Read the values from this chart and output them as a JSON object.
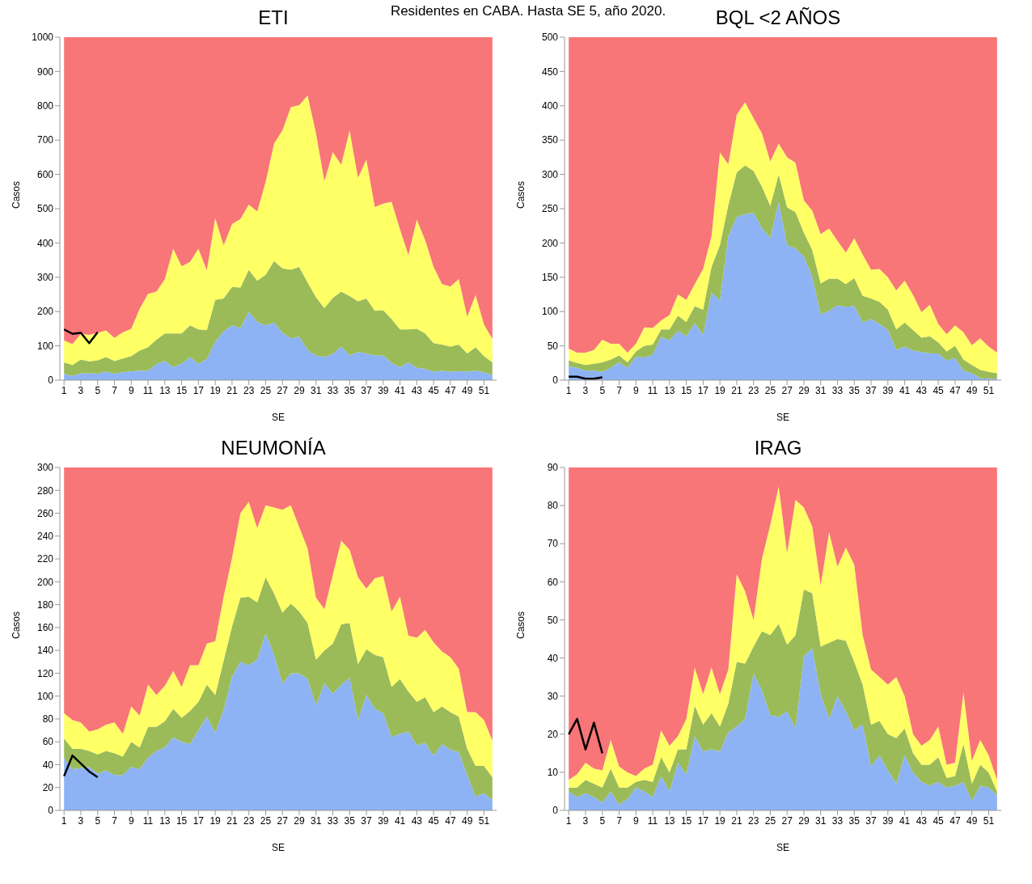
{
  "chart_data": [
    {
      "type": "area",
      "stacked": true,
      "title": "ETI",
      "xlabel": "SE",
      "ylabel": "Casos",
      "annotations": [
        "Residentes en CABA. Hasta SE 5, año 2020."
      ],
      "x": [
        1,
        2,
        3,
        4,
        5,
        6,
        7,
        8,
        9,
        10,
        11,
        12,
        13,
        14,
        15,
        16,
        17,
        18,
        19,
        20,
        21,
        22,
        23,
        24,
        25,
        26,
        27,
        28,
        29,
        30,
        31,
        32,
        33,
        34,
        35,
        36,
        37,
        38,
        39,
        40,
        41,
        42,
        43,
        44,
        45,
        46,
        47,
        48,
        49,
        50,
        51,
        52
      ],
      "xlim": [
        0.5,
        52.5
      ],
      "xticks": [
        1,
        3,
        5,
        7,
        9,
        11,
        13,
        15,
        17,
        19,
        21,
        23,
        25,
        27,
        29,
        31,
        33,
        35,
        37,
        39,
        41,
        43,
        45,
        47,
        49,
        51
      ],
      "ylim": [
        0,
        1000
      ],
      "yticks": [
        0,
        100,
        200,
        300,
        400,
        500,
        600,
        700,
        800,
        900,
        1000
      ],
      "series": [
        {
          "color": "#8db3f5",
          "values": [
            18,
            12,
            20,
            20,
            19,
            25,
            19,
            23,
            26,
            28,
            27,
            47,
            56,
            38,
            48,
            67,
            47,
            62,
            112,
            142,
            160,
            152,
            200,
            170,
            160,
            168,
            138,
            122,
            127,
            88,
            72,
            67,
            76,
            98,
            72,
            82,
            78,
            72,
            72,
            50,
            38,
            52,
            36,
            33,
            24,
            28,
            25,
            26,
            25,
            28,
            23,
            15
          ]
        },
        {
          "color": "#9bbb59",
          "values": [
            34,
            32,
            40,
            35,
            39,
            42,
            37,
            40,
            44,
            58,
            69,
            71,
            80,
            98,
            88,
            93,
            101,
            84,
            122,
            96,
            112,
            118,
            122,
            120,
            147,
            179,
            188,
            200,
            203,
            197,
            170,
            143,
            164,
            160,
            173,
            148,
            160,
            130,
            132,
            128,
            110,
            96,
            114,
            103,
            84,
            76,
            73,
            78,
            53,
            68,
            47,
            37
          ]
        },
        {
          "color": "#ffff66",
          "values": [
            64,
            61,
            75,
            77,
            80,
            78,
            67,
            77,
            80,
            122,
            156,
            140,
            159,
            247,
            196,
            185,
            235,
            174,
            238,
            155,
            183,
            200,
            190,
            202,
            271,
            343,
            402,
            474,
            472,
            545,
            478,
            370,
            425,
            370,
            483,
            360,
            405,
            303,
            311,
            342,
            292,
            217,
            318,
            272,
            222,
            176,
            175,
            191,
            107,
            152,
            92,
            68
          ]
        },
        {
          "color": "#f87578",
          "values": [
            884,
            895,
            865,
            868,
            862,
            855,
            877,
            860,
            850,
            792,
            748,
            742,
            705,
            617,
            668,
            655,
            617,
            680,
            528,
            607,
            545,
            530,
            488,
            508,
            422,
            310,
            272,
            204,
            198,
            170,
            280,
            420,
            335,
            372,
            272,
            410,
            357,
            495,
            485,
            480,
            560,
            635,
            532,
            592,
            670,
            720,
            727,
            705,
            815,
            752,
            838,
            880
          ]
        },
        {
          "type": "line",
          "color": "#000000",
          "x": [
            1,
            2,
            3,
            4,
            5
          ],
          "values": [
            148,
            135,
            138,
            108,
            140
          ]
        }
      ]
    },
    {
      "type": "area",
      "stacked": true,
      "title": "BQL <2 AÑOS",
      "xlabel": "SE",
      "ylabel": "Casos",
      "x": [
        1,
        2,
        3,
        4,
        5,
        6,
        7,
        8,
        9,
        10,
        11,
        12,
        13,
        14,
        15,
        16,
        17,
        18,
        19,
        20,
        21,
        22,
        23,
        24,
        25,
        26,
        27,
        28,
        29,
        30,
        31,
        32,
        33,
        34,
        35,
        36,
        37,
        38,
        39,
        40,
        41,
        42,
        43,
        44,
        45,
        46,
        47,
        48,
        49,
        50,
        51,
        52
      ],
      "xlim": [
        0.5,
        52.5
      ],
      "xticks": [
        1,
        3,
        5,
        7,
        9,
        11,
        13,
        15,
        17,
        19,
        21,
        23,
        25,
        27,
        29,
        31,
        33,
        35,
        37,
        39,
        41,
        43,
        45,
        47,
        49,
        51
      ],
      "ylim": [
        0,
        500
      ],
      "yticks": [
        0,
        50,
        100,
        150,
        200,
        250,
        300,
        350,
        400,
        450,
        500
      ],
      "series": [
        {
          "color": "#8db3f5",
          "values": [
            20,
            18,
            14,
            14,
            12,
            18,
            26,
            18,
            34,
            33,
            37,
            63,
            58,
            72,
            64,
            83,
            66,
            128,
            116,
            210,
            238,
            242,
            244,
            222,
            207,
            260,
            197,
            192,
            180,
            150,
            96,
            101,
            109,
            107,
            108,
            84,
            89,
            82,
            73,
            44,
            49,
            43,
            41,
            39,
            39,
            29,
            32,
            14,
            10,
            3,
            2,
            2
          ]
        },
        {
          "color": "#9bbb59",
          "values": [
            9,
            7,
            8,
            10,
            14,
            12,
            10,
            8,
            8,
            17,
            15,
            11,
            16,
            22,
            21,
            25,
            37,
            37,
            81,
            45,
            65,
            71,
            61,
            60,
            47,
            40,
            55,
            53,
            35,
            40,
            45,
            47,
            39,
            33,
            41,
            39,
            30,
            32,
            30,
            30,
            35,
            30,
            21,
            25,
            16,
            13,
            18,
            16,
            12,
            12,
            10,
            8
          ]
        },
        {
          "color": "#ffff66",
          "values": [
            17,
            15,
            18,
            20,
            33,
            23,
            17,
            14,
            11,
            27,
            24,
            13,
            21,
            31,
            32,
            32,
            59,
            45,
            135,
            60,
            84,
            92,
            77,
            78,
            65,
            45,
            73,
            72,
            47,
            57,
            72,
            73,
            55,
            46,
            58,
            60,
            42,
            48,
            47,
            57,
            61,
            51,
            37,
            46,
            27,
            25,
            30,
            40,
            29,
            46,
            37,
            30
          ]
        },
        {
          "color": "#f87578",
          "values": [
            454,
            460,
            460,
            456,
            441,
            447,
            447,
            460,
            447,
            423,
            424,
            413,
            405,
            375,
            383,
            360,
            338,
            290,
            168,
            185,
            113,
            95,
            118,
            140,
            181,
            155,
            175,
            183,
            238,
            253,
            287,
            279,
            297,
            314,
            293,
            317,
            339,
            338,
            350,
            369,
            355,
            376,
            401,
            390,
            418,
            433,
            420,
            430,
            449,
            439,
            451,
            460
          ]
        },
        {
          "type": "line",
          "color": "#000000",
          "x": [
            1,
            2,
            3,
            4,
            5
          ],
          "values": [
            5,
            5,
            2,
            2,
            4
          ]
        }
      ]
    },
    {
      "type": "area",
      "stacked": true,
      "title": "NEUMONÍA",
      "xlabel": "SE",
      "ylabel": "Casos",
      "x": [
        1,
        2,
        3,
        4,
        5,
        6,
        7,
        8,
        9,
        10,
        11,
        12,
        13,
        14,
        15,
        16,
        17,
        18,
        19,
        20,
        21,
        22,
        23,
        24,
        25,
        26,
        27,
        28,
        29,
        30,
        31,
        32,
        33,
        34,
        35,
        36,
        37,
        38,
        39,
        40,
        41,
        42,
        43,
        44,
        45,
        46,
        47,
        48,
        49,
        50,
        51,
        52
      ],
      "xlim": [
        0.5,
        52.5
      ],
      "xticks": [
        1,
        3,
        5,
        7,
        9,
        11,
        13,
        15,
        17,
        19,
        21,
        23,
        25,
        27,
        29,
        31,
        33,
        35,
        37,
        39,
        41,
        43,
        45,
        47,
        49,
        51
      ],
      "ylim": [
        0,
        300
      ],
      "yticks": [
        0,
        20,
        40,
        60,
        80,
        100,
        120,
        140,
        160,
        180,
        200,
        220,
        240,
        260,
        280,
        300
      ],
      "series": [
        {
          "color": "#8db3f5",
          "values": [
            46,
            36,
            37,
            38,
            32,
            35,
            31,
            31,
            38,
            36,
            46,
            52,
            55,
            64,
            60,
            58,
            70,
            82,
            68,
            88,
            117,
            130,
            127,
            132,
            155,
            136,
            111,
            120,
            120,
            115,
            92,
            111,
            102,
            110,
            116,
            79,
            101,
            89,
            85,
            64,
            67,
            69,
            57,
            59,
            48,
            58,
            53,
            51,
            31,
            12,
            15,
            9
          ]
        },
        {
          "color": "#9bbb59",
          "values": [
            17,
            18,
            17,
            14,
            17,
            17,
            19,
            16,
            22,
            19,
            27,
            21,
            23,
            25,
            21,
            29,
            25,
            28,
            33,
            43,
            44,
            56,
            60,
            50,
            49,
            54,
            62,
            61,
            54,
            49,
            40,
            29,
            44,
            53,
            48,
            49,
            40,
            47,
            49,
            44,
            48,
            35,
            38,
            40,
            38,
            33,
            33,
            31,
            23,
            27,
            24,
            20
          ]
        },
        {
          "color": "#ffff66",
          "values": [
            22,
            25,
            23,
            17,
            22,
            23,
            27,
            20,
            31,
            28,
            37,
            28,
            31,
            33,
            27,
            40,
            32,
            36,
            47,
            56,
            60,
            74,
            83,
            65,
            63,
            75,
            90,
            86,
            74,
            65,
            54,
            36,
            60,
            73,
            64,
            76,
            53,
            67,
            71,
            66,
            72,
            49,
            56,
            59,
            61,
            48,
            48,
            42,
            32,
            47,
            40,
            32
          ]
        },
        {
          "color": "#f87578",
          "values": [
            215,
            221,
            223,
            231,
            229,
            225,
            223,
            233,
            209,
            217,
            190,
            199,
            191,
            178,
            192,
            173,
            173,
            154,
            152,
            113,
            79,
            40,
            30,
            53,
            33,
            35,
            37,
            33,
            52,
            71,
            114,
            124,
            94,
            64,
            72,
            96,
            106,
            97,
            95,
            126,
            113,
            147,
            149,
            142,
            153,
            161,
            166,
            176,
            214,
            214,
            221,
            239
          ]
        },
        {
          "type": "line",
          "color": "#000000",
          "x": [
            1,
            2,
            3,
            4,
            5
          ],
          "values": [
            30,
            48,
            41,
            34,
            29
          ]
        }
      ]
    },
    {
      "type": "area",
      "stacked": true,
      "title": "IRAG",
      "xlabel": "SE",
      "ylabel": "Casos",
      "x": [
        1,
        2,
        3,
        4,
        5,
        6,
        7,
        8,
        9,
        10,
        11,
        12,
        13,
        14,
        15,
        16,
        17,
        18,
        19,
        20,
        21,
        22,
        23,
        24,
        25,
        26,
        27,
        28,
        29,
        30,
        31,
        32,
        33,
        34,
        35,
        36,
        37,
        38,
        39,
        40,
        41,
        42,
        43,
        44,
        45,
        46,
        47,
        48,
        49,
        50,
        51,
        52
      ],
      "xlim": [
        0.5,
        52.5
      ],
      "xticks": [
        1,
        3,
        5,
        7,
        9,
        11,
        13,
        15,
        17,
        19,
        21,
        23,
        25,
        27,
        29,
        31,
        33,
        35,
        37,
        39,
        41,
        43,
        45,
        47,
        49,
        51
      ],
      "ylim": [
        0,
        90
      ],
      "yticks": [
        0,
        10,
        20,
        30,
        40,
        50,
        60,
        70,
        80,
        90
      ],
      "series": [
        {
          "color": "#8db3f5",
          "values": [
            5,
            3.5,
            4.5,
            3.5,
            2,
            5,
            1.5,
            3,
            6,
            5,
            3.5,
            9,
            5,
            12.5,
            9.5,
            19.5,
            15.5,
            16,
            15.5,
            20.5,
            22,
            24,
            36,
            31.5,
            25,
            24.5,
            26,
            21.5,
            40.5,
            42.5,
            30.5,
            24,
            30,
            26,
            21,
            22.5,
            11.5,
            14.5,
            10.5,
            7,
            14.5,
            10,
            7.5,
            6.5,
            7.5,
            6,
            6.5,
            7.5,
            2.5,
            6.5,
            6,
            4
          ]
        },
        {
          "color": "#9bbb59",
          "values": [
            1,
            2.5,
            3.5,
            3.5,
            4,
            6,
            4.5,
            3,
            1.5,
            3,
            4,
            5,
            5,
            3.5,
            6.5,
            8,
            7,
            9.5,
            6.5,
            7.5,
            17,
            14.5,
            7,
            15.5,
            21,
            24.5,
            17.5,
            24.5,
            17.5,
            14.5,
            12.5,
            20,
            15,
            18.5,
            18,
            10.5,
            11,
            9,
            9.5,
            12,
            7,
            5,
            4.5,
            5.5,
            6.5,
            2.5,
            2.5,
            10,
            4.5,
            5.5,
            4,
            1
          ]
        },
        {
          "color": "#ffff66",
          "values": [
            2,
            3.5,
            4.5,
            4,
            4.5,
            7.5,
            5.5,
            4,
            1.5,
            3,
            4.5,
            7,
            7,
            3.5,
            8,
            10,
            8,
            12,
            8.5,
            9,
            23,
            19,
            7,
            19,
            29,
            36,
            24,
            35.5,
            21.5,
            17.5,
            16,
            29,
            19,
            24.5,
            25.5,
            13,
            14.5,
            11.5,
            13,
            16,
            8.5,
            5,
            5,
            6.5,
            8,
            3.5,
            3.5,
            13.5,
            6,
            6.5,
            4.5,
            3
          ]
        },
        {
          "color": "#f87578",
          "values": [
            82,
            80.5,
            77.5,
            79,
            79.5,
            71.5,
            78.5,
            80,
            81,
            79,
            78,
            69,
            73,
            70.5,
            66,
            52.5,
            59.5,
            52.5,
            59.5,
            53,
            28,
            32.5,
            40,
            24,
            15,
            5,
            22.5,
            8.5,
            10.5,
            15.5,
            31,
            17,
            26,
            21,
            25.5,
            44,
            53,
            55,
            57,
            55,
            60,
            70,
            73,
            71.5,
            68,
            78,
            77.5,
            59,
            77,
            71.5,
            75.5,
            82
          ]
        },
        {
          "type": "line",
          "color": "#000000",
          "x": [
            1,
            2,
            3,
            4,
            5
          ],
          "values": [
            20,
            24,
            16,
            23,
            15
          ]
        }
      ]
    }
  ]
}
